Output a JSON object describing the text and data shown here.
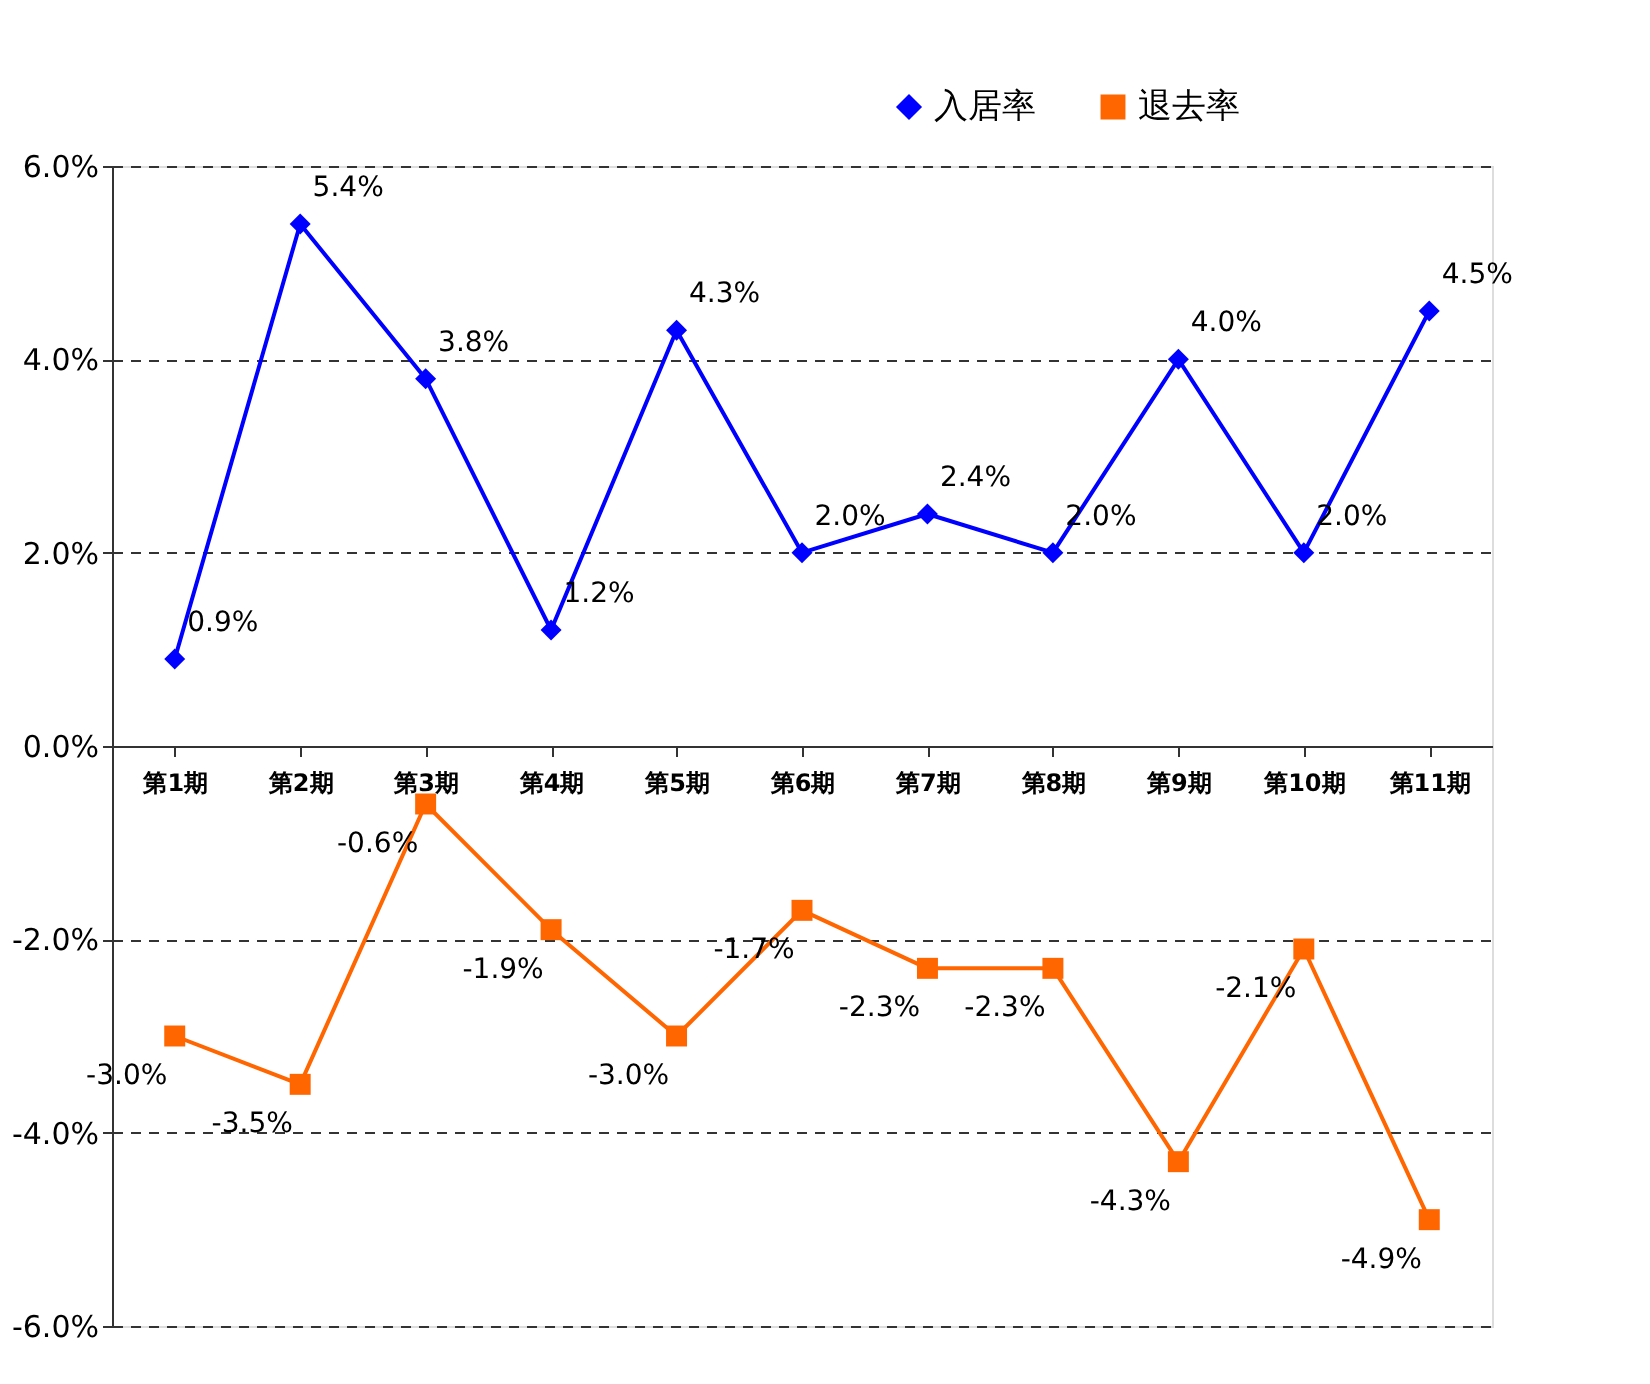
{
  "chart_data": {
    "type": "line",
    "categories": [
      "第1期",
      "第2期",
      "第3期",
      "第4期",
      "第5期",
      "第6期",
      "第7期",
      "第8期",
      "第9期",
      "第10期",
      "第11期"
    ],
    "series": [
      {
        "name": "入居率",
        "color": "#0000ff",
        "marker": "diamond",
        "values": [
          0.9,
          5.4,
          3.8,
          1.2,
          4.3,
          2.0,
          2.4,
          2.0,
          4.0,
          2.0,
          4.5
        ],
        "value_labels": [
          "0.9%",
          "5.4%",
          "3.8%",
          "1.2%",
          "4.3%",
          "2.0%",
          "2.4%",
          "2.0%",
          "4.0%",
          "2.0%",
          "4.5%"
        ]
      },
      {
        "name": "退去率",
        "color": "#ff6600",
        "marker": "square",
        "values": [
          -3.0,
          -3.5,
          -0.6,
          -1.9,
          -3.0,
          -1.7,
          -2.3,
          -2.3,
          -4.3,
          -2.1,
          -4.9
        ],
        "value_labels": [
          "-3.0%",
          "-3.5%",
          "-0.6%",
          "-1.9%",
          "-3.0%",
          "-1.7%",
          "-2.3%",
          "-2.3%",
          "-4.3%",
          "-2.1%",
          "-4.9%"
        ]
      }
    ],
    "ylim": [
      -6,
      6
    ],
    "yticks": [
      {
        "value": -6,
        "label": "-6.0%"
      },
      {
        "value": -4,
        "label": "-4.0%"
      },
      {
        "value": -2,
        "label": "-2.0%"
      },
      {
        "value": 0,
        "label": "0.0%"
      },
      {
        "value": 2,
        "label": "2.0%"
      },
      {
        "value": 4,
        "label": "4.0%"
      },
      {
        "value": 6,
        "label": "6.0%"
      }
    ],
    "grid": "y",
    "legend": "top right",
    "line_style": "solid"
  }
}
